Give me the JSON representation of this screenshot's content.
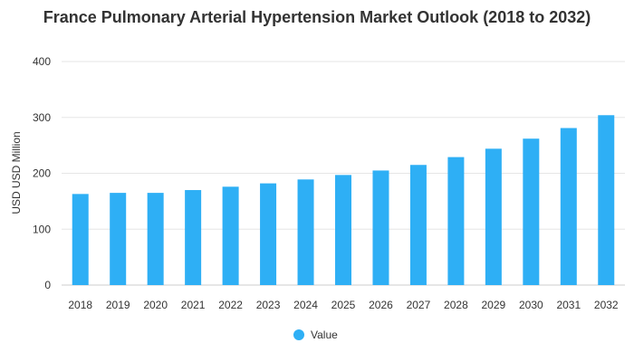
{
  "chart_data": {
    "type": "bar",
    "title": "France Pulmonary Arterial Hypertension Market Outlook (2018 to 2032)",
    "xlabel": "",
    "ylabel": "USD USD Million",
    "categories": [
      "2018",
      "2019",
      "2020",
      "2021",
      "2022",
      "2023",
      "2024",
      "2025",
      "2026",
      "2027",
      "2028",
      "2029",
      "2030",
      "2031",
      "2032"
    ],
    "series": [
      {
        "name": "Value",
        "color": "#2eaff5",
        "values": [
          163,
          165,
          165,
          170,
          176,
          182,
          189,
          197,
          205,
          215,
          229,
          244,
          262,
          281,
          304
        ]
      }
    ],
    "ylim": [
      0,
      400
    ],
    "yticks": [
      "0",
      "100",
      "200",
      "300",
      "400"
    ],
    "grid": true,
    "legend": "bottom"
  }
}
